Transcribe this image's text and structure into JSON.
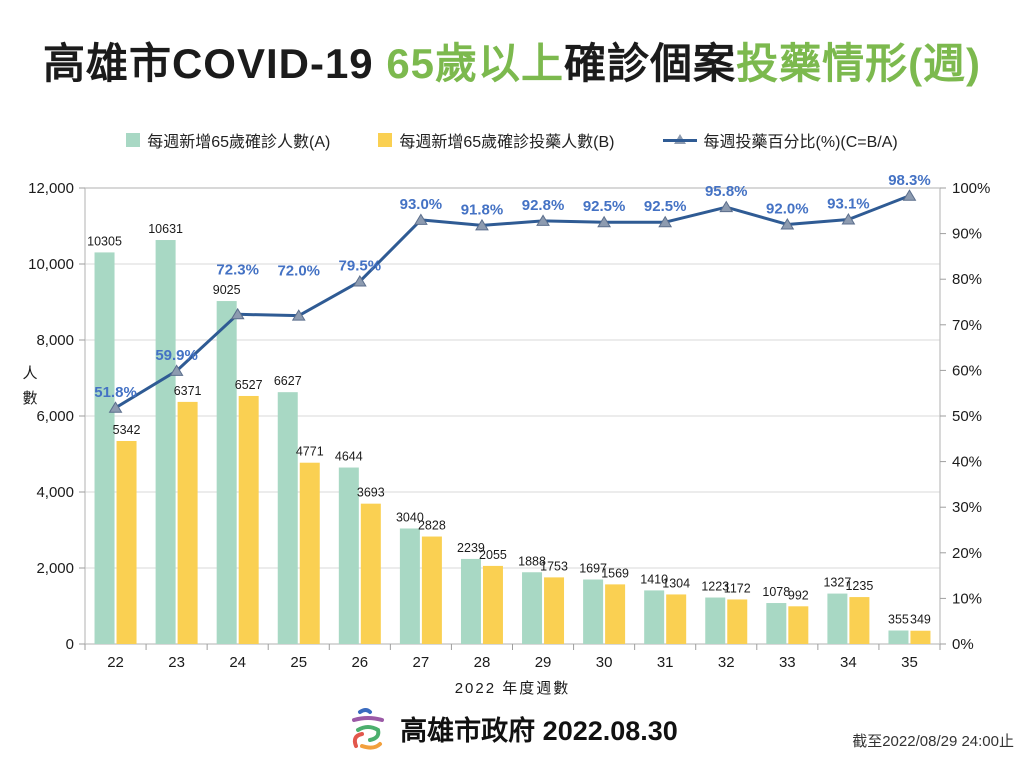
{
  "title": {
    "part1": "高雄市COVID-19 ",
    "part2": "65歲以上",
    "part3": "確診個案",
    "part4": "投藥情形(週)"
  },
  "legend": [
    {
      "label": "每週新增65歲確診人數(A)",
      "color": "#a8d8c4",
      "marker": "square"
    },
    {
      "label": "每週新增65歲確診投藥人數(B)",
      "color": "#fad052",
      "marker": "square"
    },
    {
      "label": "每週投藥百分比(%)(C=B/A)",
      "color": "#2f5b94",
      "marker": "line-triangle"
    }
  ],
  "chart_data": {
    "type": "combo",
    "categories": [
      "22",
      "23",
      "24",
      "25",
      "26",
      "27",
      "28",
      "29",
      "30",
      "31",
      "32",
      "33",
      "34",
      "35"
    ],
    "series": [
      {
        "name": "每週新增65歲確診人數(A)",
        "type": "bar",
        "color": "#a8d8c4",
        "values": [
          10305,
          10631,
          9025,
          6627,
          4644,
          3040,
          2239,
          1888,
          1697,
          1410,
          1223,
          1078,
          1327,
          355
        ]
      },
      {
        "name": "每週新增65歲確診投藥人數(B)",
        "type": "bar",
        "color": "#fad052",
        "values": [
          5342,
          6371,
          6527,
          4771,
          3693,
          2828,
          2055,
          1753,
          1569,
          1304,
          1172,
          992,
          1235,
          349
        ]
      },
      {
        "name": "每週投藥百分比(%)(C=B/A)",
        "type": "line",
        "axis": "right",
        "color": "#2f5b94",
        "marker_fill": "#8d9bb0",
        "marker_stroke": "#5b6e8c",
        "label_color": "#4472c4",
        "values": [
          51.8,
          59.9,
          72.3,
          72.0,
          79.5,
          93.0,
          91.8,
          92.8,
          92.5,
          92.5,
          95.8,
          92.0,
          93.1,
          98.3
        ],
        "label_dy": [
          -16,
          -16,
          -45,
          -45,
          -16,
          -16,
          -16,
          -16,
          -16,
          -16,
          -16,
          -16,
          -16,
          -16
        ]
      }
    ],
    "xlabel": "2022 年度週數",
    "ylabel": "人數",
    "y_left": {
      "min": 0,
      "max": 12000,
      "step": 2000
    },
    "y_right": {
      "min": 0,
      "max": 100,
      "step": 10,
      "suffix": "%"
    },
    "grid": true,
    "legend_position": "top",
    "grid_color": "#d9d9d9",
    "border_color": "#bfbfbf",
    "tick_color": "#9e9e9e",
    "axis_text_color": "#1b1b1b",
    "bar_label_color": "#1b1b1b"
  },
  "footer": {
    "org_and_date": "高雄市政府 2022.08.30",
    "cutoff_note": "截至2022/08/29 24:00止"
  }
}
